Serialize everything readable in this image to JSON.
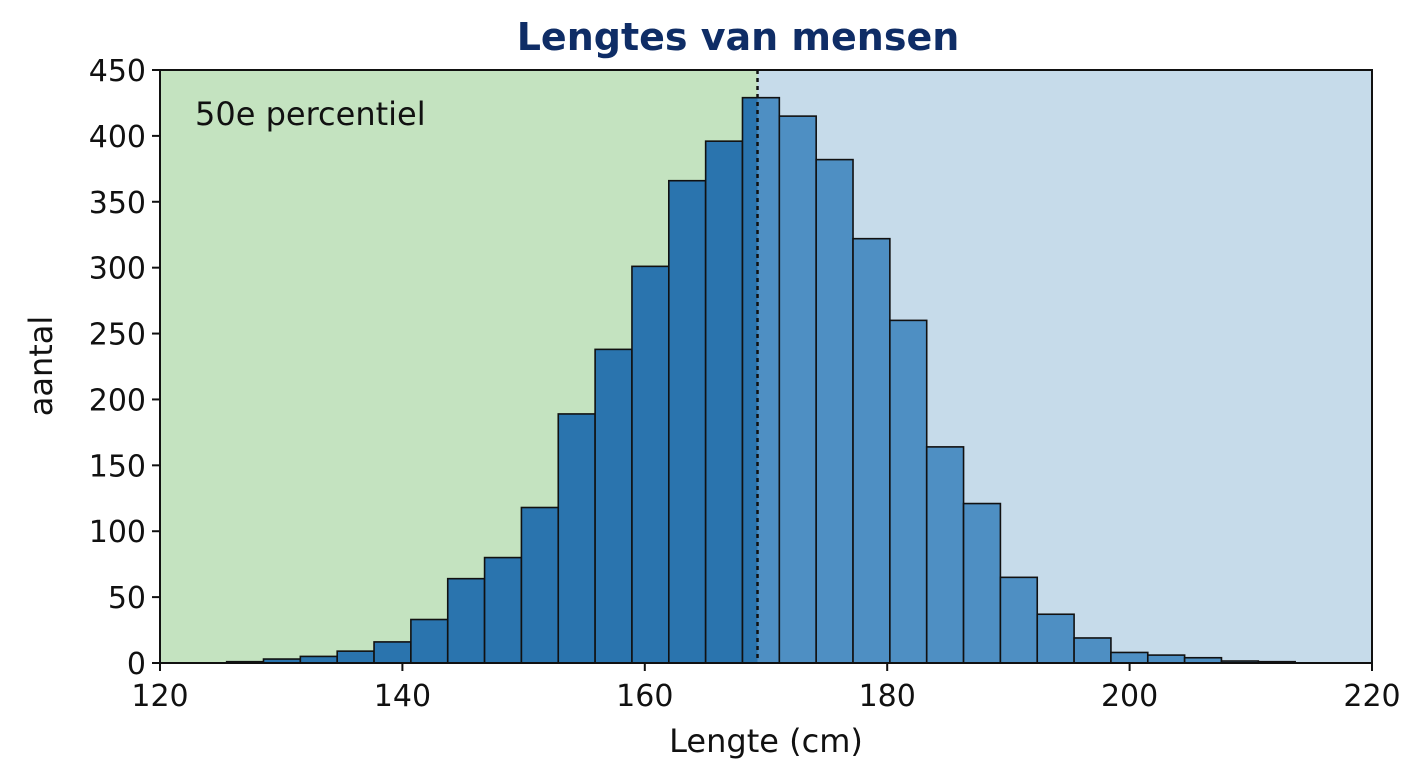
{
  "chart_data": {
    "type": "bar",
    "title": "Lengtes van mensen",
    "xlabel": "Lengte (cm)",
    "ylabel": "aantal",
    "xlim": [
      120,
      220
    ],
    "ylim": [
      0,
      450
    ],
    "xticks": [
      "120",
      "140",
      "160",
      "180",
      "200",
      "220"
    ],
    "yticks": [
      "0",
      "50",
      "100",
      "150",
      "200",
      "250",
      "300",
      "350",
      "400",
      "450"
    ],
    "bin_start": 125.5,
    "bin_width": 3.04,
    "values": [
      1,
      3,
      5,
      9,
      16,
      33,
      64,
      80,
      118,
      189,
      238,
      301,
      366,
      396,
      429,
      415,
      382,
      322,
      260,
      164,
      121,
      65,
      37,
      19,
      8,
      6,
      4,
      1.5,
      1
    ],
    "median": 169.3,
    "annotation": "50e percentiel",
    "colors": {
      "title": "#0f2d66",
      "left_region": "#c4e3c0",
      "right_region": "#c6dbea",
      "bar_left": "#2a74ae",
      "bar_right": "#4e8fc3"
    }
  }
}
